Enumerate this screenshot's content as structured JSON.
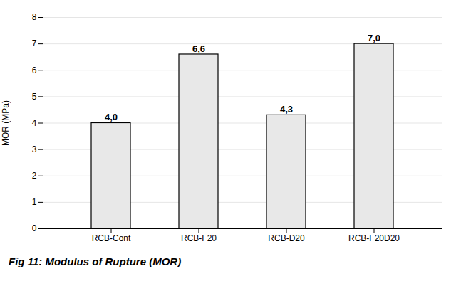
{
  "chart_data": {
    "type": "bar",
    "caption": "Fig 11: Modulus of Rupture (MOR)",
    "ylabel": "MOR (MPa)",
    "categories": [
      "RCB-Cont",
      "RCB-F20",
      "RCB-D20",
      "RCB-F20D20"
    ],
    "values": [
      4.0,
      6.6,
      4.3,
      7.0
    ],
    "value_labels": [
      "4,0",
      "6,6",
      "4,3",
      "7,0"
    ],
    "data_labels": true,
    "color": "#e8e8e8",
    "ylim": [
      0,
      8
    ],
    "yticks": [
      0,
      1,
      2,
      3,
      4,
      5,
      6,
      7,
      8
    ],
    "grid": true
  }
}
